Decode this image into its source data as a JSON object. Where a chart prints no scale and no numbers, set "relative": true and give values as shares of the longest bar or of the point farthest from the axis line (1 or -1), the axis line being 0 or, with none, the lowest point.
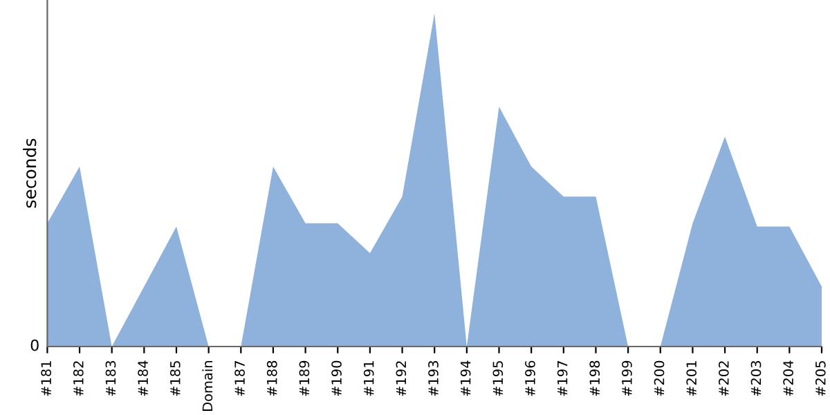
{
  "chart_data": {
    "type": "area",
    "ylabel": "seconds",
    "relative": true,
    "annotations": [
      "0"
    ],
    "grid": false,
    "categories": [
      "#181",
      "#182",
      "#183",
      "#184",
      "#185",
      "Domain",
      "#187",
      "#188",
      "#189",
      "#190",
      "#191",
      "#192",
      "#193",
      "#194",
      "#195",
      "#196",
      "#197",
      "#198",
      "#199",
      "#200",
      "#201",
      "#202",
      "#203",
      "#204",
      "#205"
    ],
    "series": [
      {
        "color": "#8fb2dc",
        "values": [
          0.37,
          0.54,
          0,
          0.18,
          0.36,
          0,
          0,
          0.54,
          0.37,
          0.37,
          0.28,
          0.45,
          1,
          0,
          0.72,
          0.54,
          0.45,
          0.45,
          0,
          0,
          0.37,
          0.63,
          0.36,
          0.36,
          0.18
        ]
      }
    ]
  }
}
